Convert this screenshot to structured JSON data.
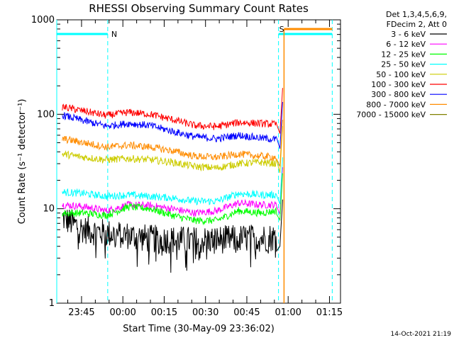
{
  "chart_data": {
    "type": "line",
    "title": "RHESSI Observing Summary Count Rates",
    "xlabel": "Start Time (30-May-09 23:36:02)",
    "ylabel": "Count Rate (s⁻¹ detector⁻¹)",
    "yscale": "log",
    "ylim": [
      1,
      1000
    ],
    "xlim_minutes_from_2336": [
      0,
      103
    ],
    "x_tick_labels": [
      "23:45",
      "00:00",
      "00:15",
      "00:30",
      "00:45",
      "01:00",
      "01:15"
    ],
    "y_tick_labels": [
      "1",
      "10",
      "100",
      "1000"
    ],
    "grid": false,
    "legend_header": [
      "Det 1,3,4,5,6,9,",
      "FDecim 2, Att 0"
    ],
    "legend_position": "right",
    "timestamp": "14-Oct-2021 21:19",
    "annotations": [
      {
        "label": "N",
        "text_color": "#00ffff"
      },
      {
        "label": "S",
        "text_color": "#ff8c00"
      }
    ],
    "flags": [
      {
        "name": "night",
        "color": "#00ffff",
        "intervals": [
          [
            0,
            18.5
          ],
          [
            80.5,
            100
          ]
        ]
      },
      {
        "name": "saa",
        "color": "#ff8c00",
        "intervals": [
          [
            82.5,
            100
          ]
        ]
      }
    ],
    "series": [
      {
        "name": "3 - 6 keV",
        "color": "#000000",
        "base": 5.0,
        "noise": 0.18,
        "x": [
          2,
          10,
          18,
          26,
          34,
          42,
          50,
          58,
          66,
          74,
          80
        ],
        "values": [
          8,
          6,
          5.5,
          5.2,
          4.8,
          4.7,
          4.6,
          4.7,
          4.8,
          4.9,
          5
        ]
      },
      {
        "name": "6 - 12 keV",
        "color": "#ff00ff",
        "x": [
          2,
          10,
          18,
          26,
          34,
          42,
          50,
          58,
          66,
          74,
          80
        ],
        "values": [
          11,
          10.5,
          9.5,
          11,
          10.8,
          10,
          9,
          9.5,
          11.5,
          11,
          11
        ]
      },
      {
        "name": "12 - 25 keV",
        "color": "#00ff00",
        "x": [
          2,
          10,
          18,
          26,
          34,
          42,
          50,
          58,
          66,
          74,
          80
        ],
        "values": [
          9,
          9,
          8.5,
          10.5,
          10,
          8.5,
          7.5,
          7.5,
          9.5,
          9,
          9.5
        ]
      },
      {
        "name": "25 - 50 keV",
        "color": "#00ffff",
        "x": [
          2,
          10,
          18,
          26,
          34,
          42,
          50,
          58,
          66,
          74,
          80
        ],
        "values": [
          15,
          14.5,
          13.5,
          14,
          13.5,
          13,
          12,
          12,
          14.5,
          14,
          14
        ]
      },
      {
        "name": "50 - 100 keV",
        "color": "#cccc00",
        "x": [
          2,
          10,
          18,
          26,
          34,
          42,
          50,
          58,
          66,
          74,
          80
        ],
        "values": [
          38,
          35,
          33,
          34,
          33,
          31,
          28,
          27,
          30,
          31,
          30
        ]
      },
      {
        "name": "100 - 300 keV",
        "color": "#ff0000",
        "x": [
          2,
          10,
          18,
          26,
          34,
          42,
          50,
          58,
          66,
          74,
          80
        ],
        "values": [
          120,
          108,
          97,
          105,
          100,
          88,
          76,
          74,
          82,
          80,
          78
        ]
      },
      {
        "name": "300 - 800 keV",
        "color": "#0000ff",
        "x": [
          2,
          10,
          18,
          26,
          34,
          42,
          50,
          58,
          66,
          74,
          80
        ],
        "values": [
          98,
          85,
          75,
          80,
          76,
          66,
          58,
          55,
          60,
          56,
          54
        ]
      },
      {
        "name": "800 - 7000 keV",
        "color": "#ff8c00",
        "x": [
          2,
          10,
          18,
          26,
          34,
          42,
          50,
          58,
          66,
          74,
          80
        ],
        "values": [
          55,
          50,
          45,
          47,
          45,
          41,
          36,
          35,
          38,
          36,
          35
        ]
      },
      {
        "name": "7000 - 15000 keV",
        "color": "#808000",
        "x": [],
        "values": []
      }
    ]
  }
}
